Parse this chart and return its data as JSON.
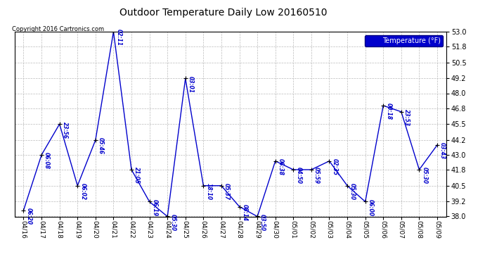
{
  "title": "Outdoor Temperature Daily Low 20160510",
  "copyright": "Copyright 2016 Cartronics.com",
  "legend_label": "Temperature (°F)",
  "ylim": [
    38.0,
    53.0
  ],
  "yticks": [
    38.0,
    39.2,
    40.5,
    41.8,
    43.0,
    44.2,
    45.5,
    46.8,
    48.0,
    49.2,
    50.5,
    51.8,
    53.0
  ],
  "dates": [
    "04/16",
    "04/17",
    "04/18",
    "04/19",
    "04/20",
    "04/21",
    "04/22",
    "04/23",
    "04/24",
    "04/25",
    "04/26",
    "04/27",
    "04/28",
    "04/29",
    "04/30",
    "05/01",
    "05/02",
    "05/03",
    "05/04",
    "05/05",
    "05/06",
    "05/07",
    "05/08",
    "05/09"
  ],
  "values": [
    38.5,
    43.0,
    45.5,
    40.5,
    44.2,
    53.0,
    41.8,
    39.2,
    38.0,
    49.2,
    40.5,
    40.5,
    38.8,
    38.0,
    42.5,
    41.8,
    41.8,
    42.5,
    40.5,
    39.2,
    47.0,
    46.5,
    41.8,
    43.8
  ],
  "time_labels": [
    "06:20",
    "06:08",
    "23:56",
    "06:02",
    "05:46",
    "02:11",
    "21:05",
    "06:19",
    "05:30",
    "03:01",
    "18:10",
    "05:37",
    "08:14",
    "03:50",
    "06:38",
    "04:50",
    "05:59",
    "02:35",
    "05:30",
    "06:00",
    "00:18",
    "23:53",
    "05:30",
    "03:43"
  ],
  "line_color": "#0000cc",
  "marker_color": "#000000",
  "label_color": "#0000cc",
  "bg_color": "#ffffff",
  "grid_color": "#bbbbbb",
  "title_color": "#000000",
  "legend_bg": "#0000cc",
  "legend_fg": "#ffffff",
  "copyright_color": "#000000"
}
